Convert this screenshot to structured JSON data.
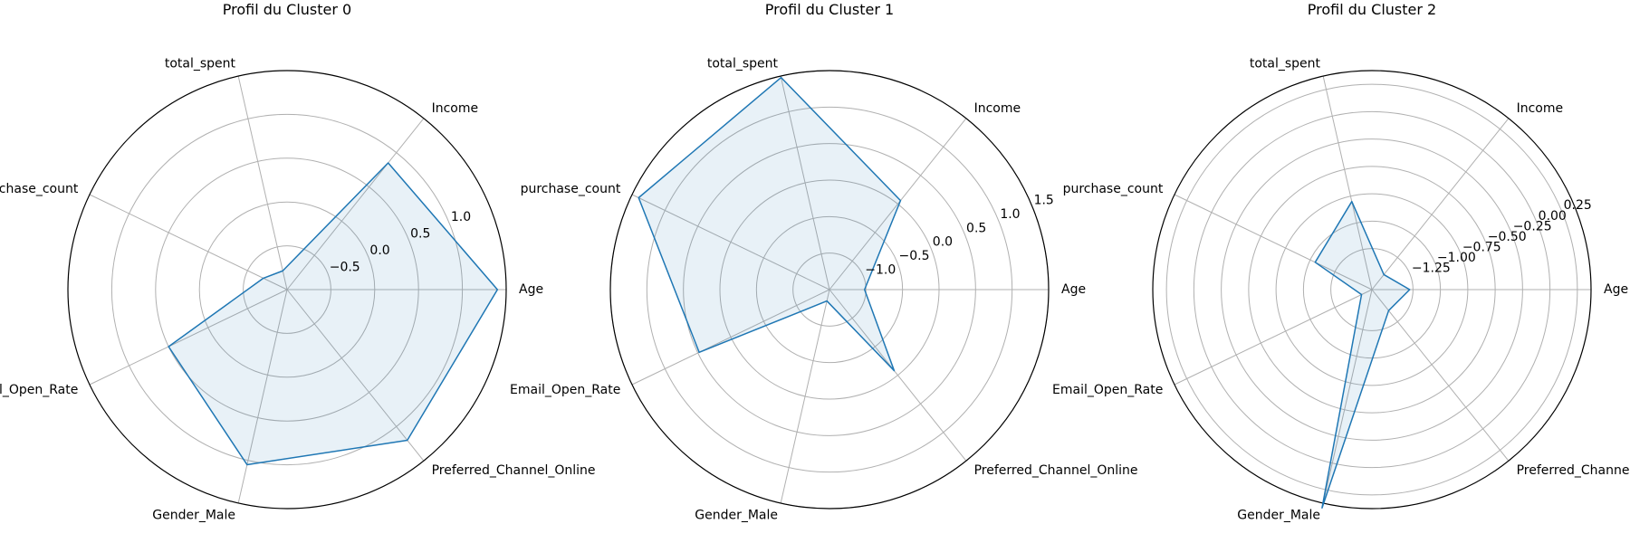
{
  "colors": {
    "line": "#1f77b4",
    "fill": "#1f77b4",
    "grid": "#b0b0b0",
    "frame": "#000000"
  },
  "chart_data": [
    {
      "type": "radar",
      "title": "Profil du Cluster 0",
      "axes": [
        "Age",
        "Income",
        "total_spent",
        "purchase_count",
        "Email_Open_Rate",
        "Gender_Male",
        "Preferred_Channel_Online"
      ],
      "values": [
        1.4,
        0.85,
        -0.78,
        -0.7,
        0.5,
        1.05,
        1.2
      ],
      "rlim": [
        -1.0,
        1.5
      ],
      "rticks": [
        -0.5,
        0.0,
        0.5,
        1.0
      ],
      "rtick_labels": [
        "−0.5",
        "0.0",
        "0.5",
        "1.0"
      ],
      "grid": true
    },
    {
      "type": "radar",
      "title": "Profil du Cluster 1",
      "axes": [
        "Age",
        "Income",
        "total_spent",
        "purchase_count",
        "Email_Open_Rate",
        "Gender_Male",
        "Preferred_Channel_Online"
      ],
      "values": [
        -1.02,
        0.06,
        1.48,
        1.4,
        0.48,
        -1.34,
        -0.08
      ],
      "rlim": [
        -1.5,
        1.5
      ],
      "rticks": [
        -1.0,
        -0.5,
        0.0,
        0.5,
        1.0,
        1.5
      ],
      "rtick_labels": [
        "−1.0",
        "−0.5",
        "0.0",
        "0.5",
        "1.0",
        "1.5"
      ],
      "grid": true
    },
    {
      "type": "radar",
      "title": "Profil du Cluster 2",
      "axes": [
        "Age",
        "Income",
        "total_spent",
        "purchase_count",
        "Email_Open_Rate",
        "Gender_Male",
        "Preferred_Channel_Online"
      ],
      "values": [
        -1.28,
        -1.45,
        -0.8,
        -1.05,
        -1.52,
        0.42,
        -1.38
      ],
      "rlim": [
        -1.625,
        0.375
      ],
      "rticks": [
        -1.25,
        -1.0,
        -0.75,
        -0.5,
        -0.25,
        0.0,
        0.25
      ],
      "rtick_labels": [
        "−1.25",
        "−1.00",
        "−0.75",
        "−0.50",
        "−0.25",
        "0.00",
        "0.25"
      ],
      "grid": true
    }
  ]
}
